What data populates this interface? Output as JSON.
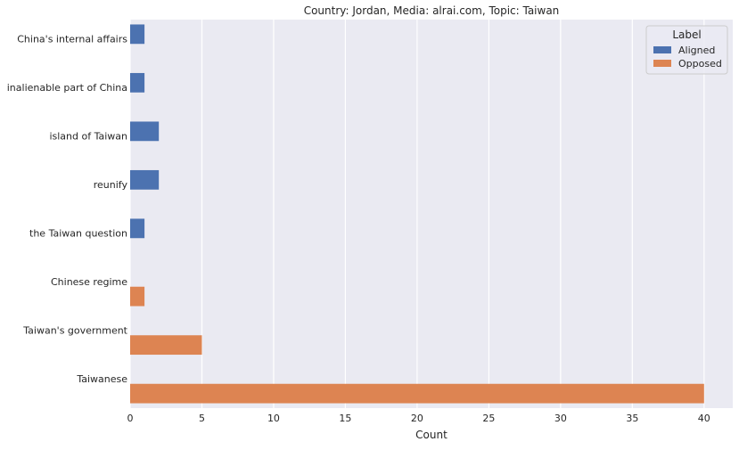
{
  "chart_data": {
    "type": "bar",
    "orientation": "horizontal",
    "title": "Country: Jordan, Media: alrai.com, Topic: Taiwan",
    "xlabel": "Count",
    "ylabel": "",
    "xlim": [
      0,
      42
    ],
    "x_ticks": [
      0,
      5,
      10,
      15,
      20,
      25,
      30,
      35,
      40
    ],
    "grid": true,
    "categories": [
      "China's internal affairs",
      "inalienable part of China",
      "island of Taiwan",
      "reunify",
      "the Taiwan question",
      "Chinese regime",
      "Taiwan's government",
      "Taiwanese"
    ],
    "series": [
      {
        "name": "Aligned",
        "color": "#4c72b0",
        "values": [
          1,
          1,
          2,
          2,
          1,
          0,
          0,
          0
        ]
      },
      {
        "name": "Opposed",
        "color": "#dd8452",
        "values": [
          0,
          0,
          0,
          0,
          0,
          1,
          5,
          40
        ]
      }
    ],
    "legend": {
      "title": "Label",
      "placement": "top-right"
    },
    "colors": {
      "plot_background": "#eaeaf2",
      "grid": "#ffffff"
    }
  }
}
